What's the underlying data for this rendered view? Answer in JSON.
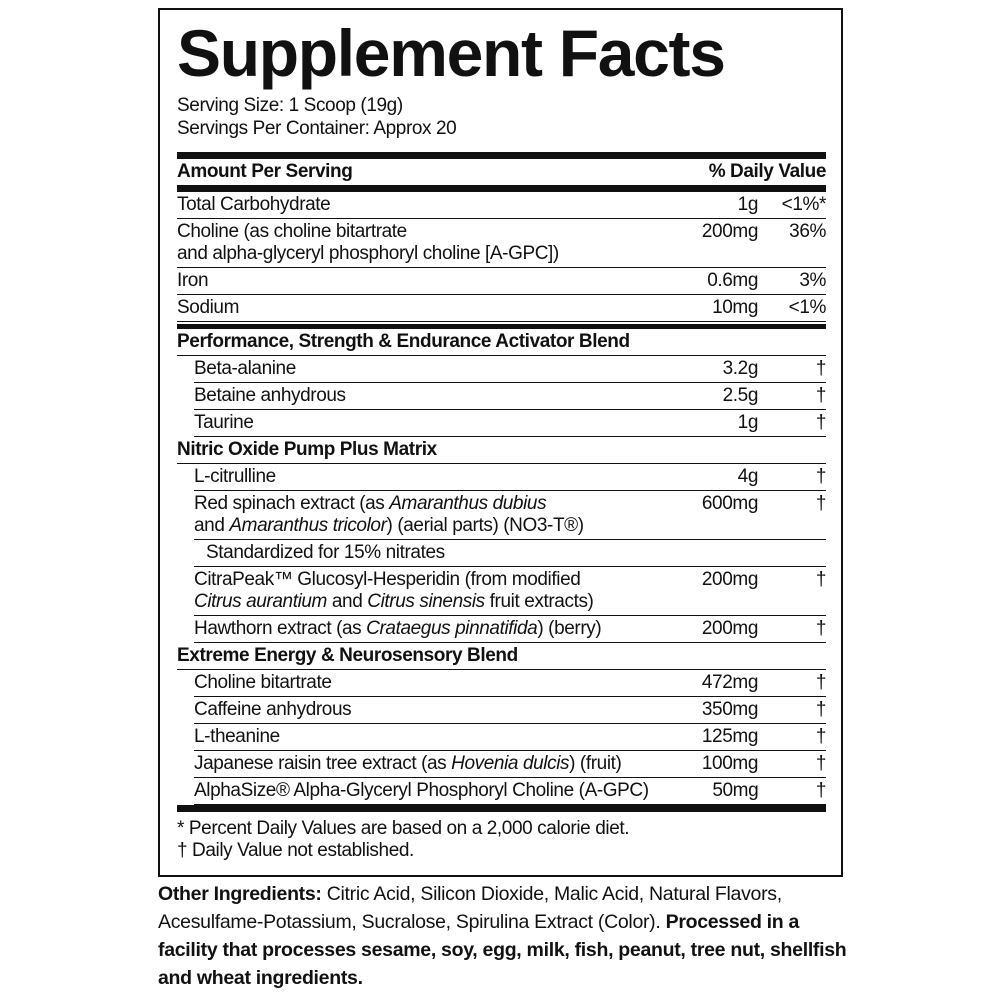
{
  "title": "Supplement Facts",
  "serving_size": "Serving Size: 1 Scoop (19g)",
  "servings_per_container": "Servings Per Container: Approx 20",
  "header": {
    "amount": "Amount Per Serving",
    "daily_value": "% Daily Value"
  },
  "nutrients": [
    {
      "name": [
        [
          "Total Carbohydrate"
        ]
      ],
      "amount": "1g",
      "daily_value": "<1%*"
    },
    {
      "name": [
        [
          "Choline (as choline bitartrate"
        ],
        [
          "and alpha-glyceryl phosphoryl choline [A-GPC])"
        ]
      ],
      "amount": "200mg",
      "daily_value": "36%"
    },
    {
      "name": [
        [
          "Iron"
        ]
      ],
      "amount": "0.6mg",
      "daily_value": "3%"
    },
    {
      "name": [
        [
          "Sodium"
        ]
      ],
      "amount": "10mg",
      "daily_value": "<1%"
    }
  ],
  "blends": [
    {
      "title": "Performance, Strength & Endurance Activator Blend",
      "items": [
        {
          "name": [
            [
              "Beta-alanine"
            ]
          ],
          "amount": "3.2g",
          "daily_value": "†"
        },
        {
          "name": [
            [
              "Betaine anhydrous"
            ]
          ],
          "amount": "2.5g",
          "daily_value": "†"
        },
        {
          "name": [
            [
              "Taurine"
            ]
          ],
          "amount": "1g",
          "daily_value": "†"
        }
      ]
    },
    {
      "title": "Nitric Oxide Pump Plus Matrix",
      "items": [
        {
          "name": [
            [
              "L-citrulline"
            ]
          ],
          "amount": "4g",
          "daily_value": "†"
        },
        {
          "name": [
            [
              "Red spinach extract (as ",
              {
                "text": "Amaranthus dubius",
                "italic": true
              }
            ],
            [
              "and ",
              {
                "text": "Amaranthus tricolor",
                "italic": true
              },
              ") (aerial parts) (NO3-T®)"
            ]
          ],
          "amount": "600mg",
          "daily_value": "†",
          "note": "Standardized for 15% nitrates"
        },
        {
          "name": [
            [
              "CitraPeak™ Glucosyl-Hesperidin (from modified"
            ],
            [
              {
                "text": "Citrus aurantium",
                "italic": true
              },
              " and ",
              {
                "text": "Citrus sinensis",
                "italic": true
              },
              " fruit extracts)"
            ]
          ],
          "amount": "200mg",
          "daily_value": "†"
        },
        {
          "name": [
            [
              "Hawthorn extract (as ",
              {
                "text": "Crataegus pinnatifida",
                "italic": true
              },
              ") (berry)"
            ]
          ],
          "amount": "200mg",
          "daily_value": "†"
        }
      ]
    },
    {
      "title": "Extreme Energy & Neurosensory Blend",
      "items": [
        {
          "name": [
            [
              "Choline bitartrate"
            ]
          ],
          "amount": "472mg",
          "daily_value": "†"
        },
        {
          "name": [
            [
              "Caffeine anhydrous"
            ]
          ],
          "amount": "350mg",
          "daily_value": "†"
        },
        {
          "name": [
            [
              "L-theanine"
            ]
          ],
          "amount": "125mg",
          "daily_value": "†"
        },
        {
          "name": [
            [
              "Japanese raisin tree extract (as ",
              {
                "text": "Hovenia dulcis",
                "italic": true
              },
              ") (fruit)"
            ]
          ],
          "amount": "100mg",
          "daily_value": "†"
        },
        {
          "name": [
            [
              "AlphaSize® Alpha-Glyceryl Phosphoryl Choline (A-GPC)"
            ]
          ],
          "amount": "50mg",
          "daily_value": "†"
        }
      ]
    }
  ],
  "footnotes": [
    "* Percent Daily Values are based on a 2,000 calorie diet.",
    "† Daily Value not established."
  ],
  "other_ingredients": {
    "label": "Other Ingredients:",
    "text": " Citric Acid, Silicon Dioxide, Malic Acid, Natural Flavors, Acesulfame-Potassium, Sucralose, Spirulina Extract (Color). ",
    "allergen": "Processed in a facility that processes sesame, soy, egg, milk, fish, peanut, tree nut, shellfish and wheat ingredients."
  }
}
